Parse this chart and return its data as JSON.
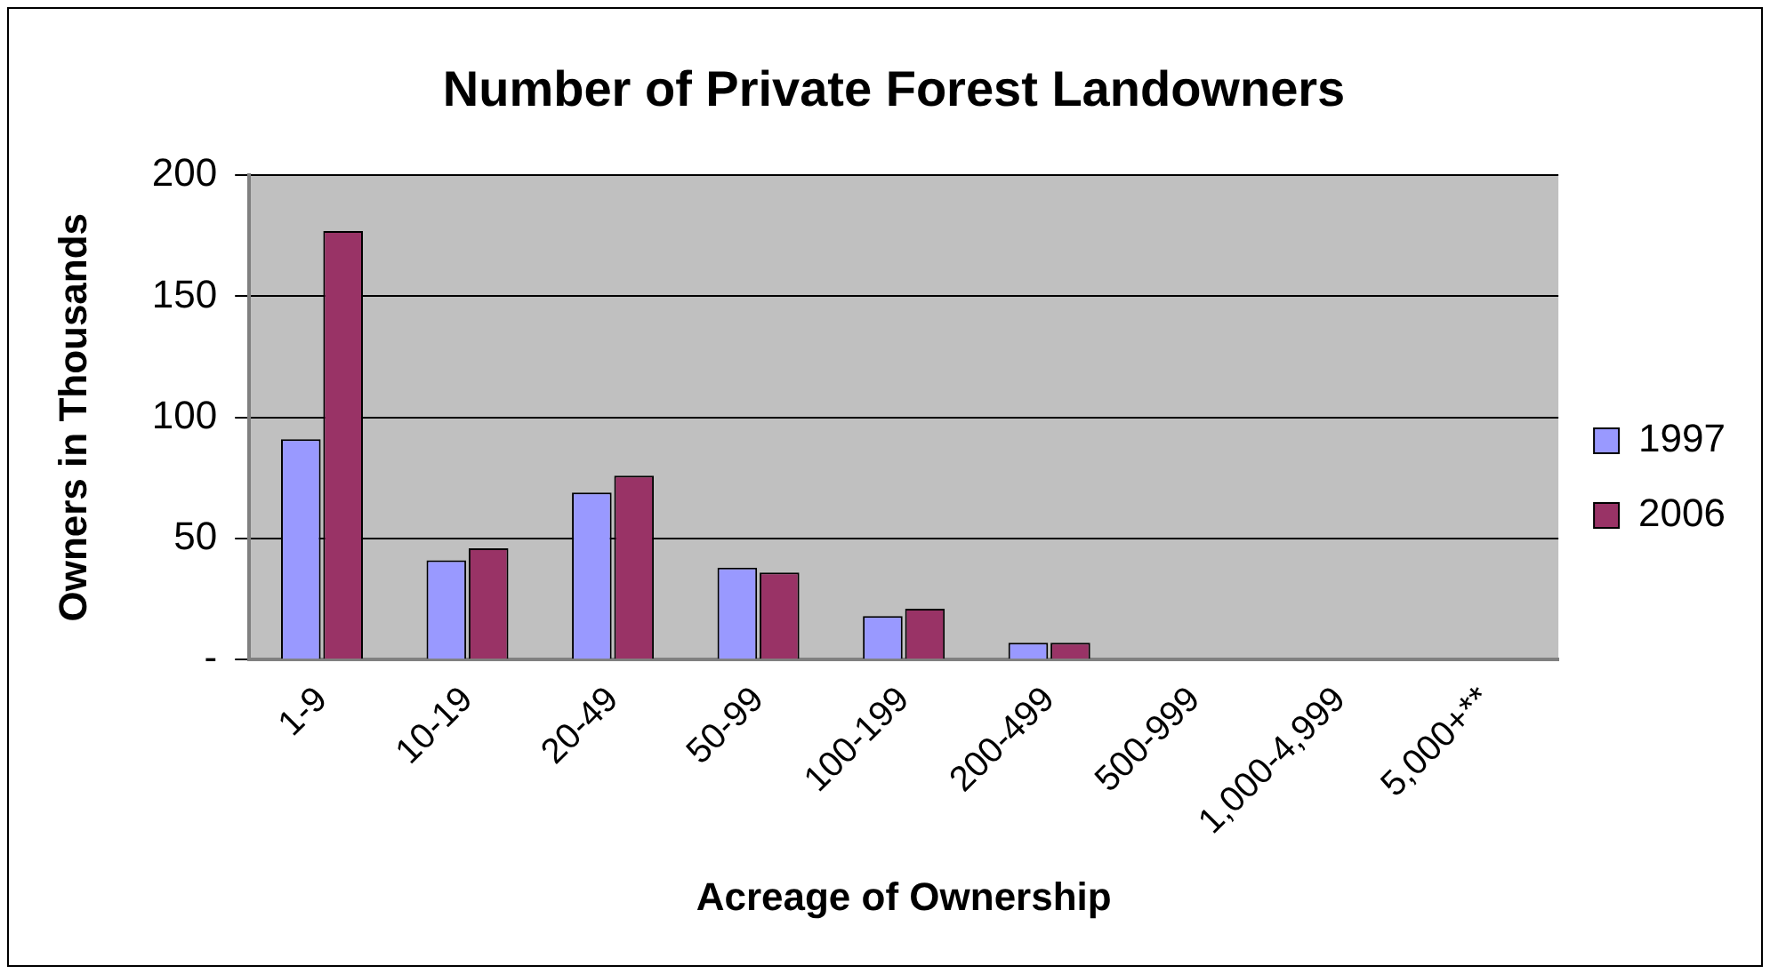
{
  "chart_data": {
    "type": "bar",
    "title": "Number of Private Forest Landowners",
    "xlabel": "Acreage of Ownership",
    "ylabel": "Owners in Thousands",
    "categories": [
      "1-9",
      "10-19",
      "20-49",
      "50-99",
      "100-199",
      "200-499",
      "500-999",
      "1,000-4,999",
      "5,000+**"
    ],
    "series": [
      {
        "name": "1997",
        "color": "#9999ff",
        "values": [
          91,
          41,
          69,
          38,
          18,
          7,
          0,
          0,
          0
        ]
      },
      {
        "name": "2006",
        "color": "#993366",
        "values": [
          177,
          46,
          76,
          36,
          21,
          7,
          0,
          0,
          0
        ]
      }
    ],
    "ylim": [
      0,
      200
    ],
    "yticks": [
      {
        "value": 0,
        "label": "-"
      },
      50,
      100,
      150,
      200
    ],
    "grid": "y",
    "legend": "right"
  }
}
